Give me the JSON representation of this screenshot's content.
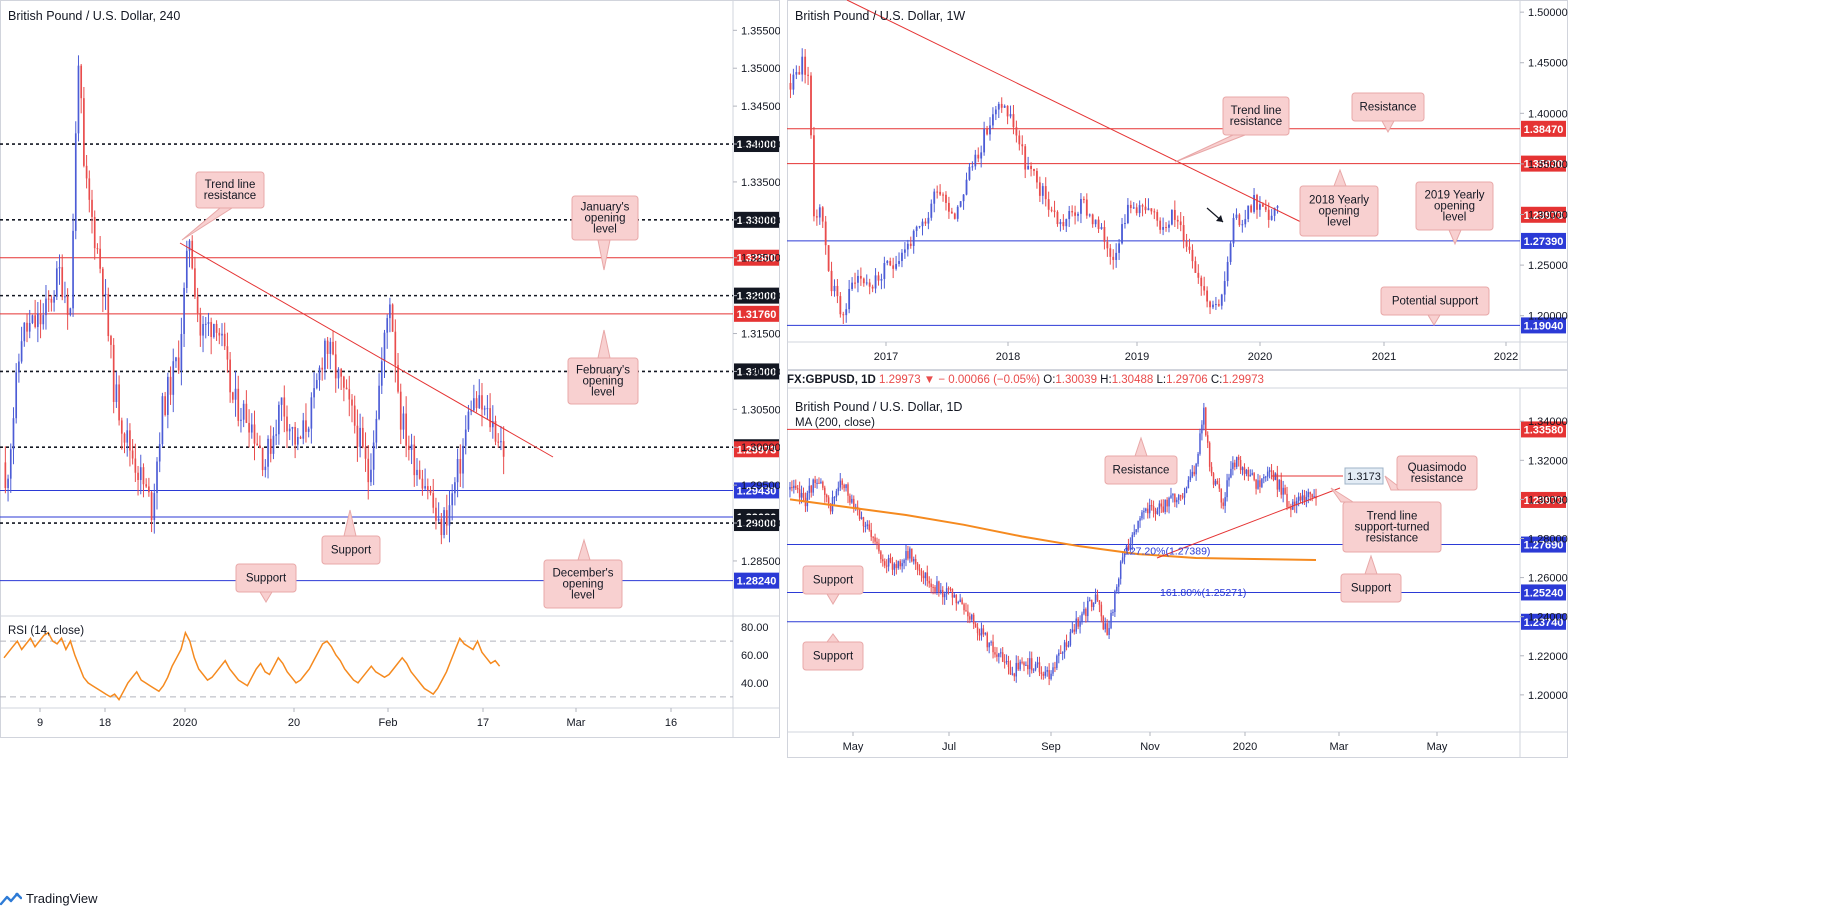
{
  "colors": {
    "up": "#4c5cd6",
    "down": "#e94c4c",
    "support_line": "#2b3ad6",
    "resistance_line": "#e53333",
    "trendline": "#e53333",
    "rsi": "#f58a1f",
    "ma": "#f58a1f",
    "label_bg": "#f8d0d0",
    "price_tag_red": "#e53333",
    "price_tag_blue": "#2b3ad6",
    "price_tag_black": "#131722"
  },
  "footer": {
    "brand": "TradingView",
    "icon": "tradingview-logo-icon"
  },
  "chart_data": [
    {
      "id": "h4",
      "type": "candlestick",
      "title": "British Pound / U.S. Dollar, 240",
      "ylim": [
        1.278,
        1.359
      ],
      "y_ticks": [
        "1.35500",
        "1.35000",
        "1.34500",
        "1.34000",
        "1.33500",
        "1.33000",
        "1.32500",
        "1.32000",
        "1.31500",
        "1.31000",
        "1.30500",
        "1.30000",
        "1.29500",
        "1.29000",
        "1.28500"
      ],
      "x_ticks": [
        "9",
        "18",
        "2020",
        "20",
        "Feb",
        "17",
        "Mar",
        "16"
      ],
      "levels": [
        {
          "tag": "1.34000",
          "value": 1.34,
          "style": "dotted",
          "tag_color": "black"
        },
        {
          "tag": "1.33000",
          "value": 1.33,
          "style": "dotted",
          "tag_color": "black"
        },
        {
          "tag": "1.32500",
          "value": 1.325,
          "style": "red",
          "tag_color": "red"
        },
        {
          "tag": "1.32000",
          "value": 1.32,
          "style": "dotted",
          "tag_color": "black"
        },
        {
          "tag": "1.31760",
          "value": 1.3176,
          "style": "red",
          "tag_color": "red"
        },
        {
          "tag": "1.31000",
          "value": 1.31,
          "style": "dotted",
          "tag_color": "black"
        },
        {
          "tag": "1.30000",
          "value": 1.3,
          "style": "dotted",
          "tag_color": "black"
        },
        {
          "tag": "1.29973",
          "value": 1.29973,
          "style": "none",
          "tag_color": "red"
        },
        {
          "tag": "1.29430",
          "value": 1.2943,
          "style": "blue",
          "tag_color": "blue"
        },
        {
          "tag": "1.29080",
          "value": 1.2908,
          "style": "blue",
          "tag_color": "black"
        },
        {
          "tag": "1.29000",
          "value": 1.29,
          "style": "dotted",
          "tag_color": "black"
        },
        {
          "tag": "1.28240",
          "value": 1.2824,
          "style": "blue",
          "tag_color": "blue"
        }
      ],
      "annotations": [
        "Trend line resistance",
        "January's opening level",
        "February's opening level",
        "Support",
        "December's opening level",
        "Support"
      ],
      "rsi": {
        "label": "RSI (14, close)",
        "ticks": [
          "80.00",
          "60.00",
          "40.00"
        ],
        "ylim": [
          22,
          88
        ],
        "values": [
          58,
          62,
          66,
          70,
          64,
          68,
          72,
          66,
          70,
          74,
          76,
          70,
          68,
          72,
          64,
          70,
          60,
          52,
          44,
          40,
          38,
          36,
          34,
          32,
          30,
          32,
          28,
          34,
          40,
          44,
          48,
          42,
          40,
          38,
          36,
          34,
          38,
          44,
          52,
          58,
          64,
          76,
          70,
          58,
          50,
          46,
          42,
          44,
          48,
          52,
          56,
          50,
          46,
          42,
          40,
          38,
          44,
          50,
          54,
          48,
          46,
          52,
          58,
          54,
          48,
          44,
          40,
          42,
          46,
          50,
          56,
          62,
          68,
          70,
          66,
          60,
          56,
          50,
          46,
          42,
          40,
          44,
          48,
          52,
          48,
          46,
          44,
          46,
          50,
          54,
          58,
          54,
          48,
          44,
          40,
          36,
          34,
          32,
          36,
          42,
          48,
          56,
          64,
          72,
          68,
          66,
          64,
          70,
          62,
          58,
          54,
          56,
          52
        ]
      },
      "candles": {
        "start": 1.298,
        "seed": 11,
        "anchors": [
          [
            0,
            1.294
          ],
          [
            6,
            1.315
          ],
          [
            14,
            1.317
          ],
          [
            20,
            1.323
          ],
          [
            24,
            1.318
          ],
          [
            27,
            1.352
          ],
          [
            29,
            1.336
          ],
          [
            32,
            1.33
          ],
          [
            36,
            1.322
          ],
          [
            40,
            1.308
          ],
          [
            44,
            1.302
          ],
          [
            50,
            1.296
          ],
          [
            54,
            1.292
          ],
          [
            58,
            1.305
          ],
          [
            64,
            1.312
          ],
          [
            68,
            1.328
          ],
          [
            72,
            1.315
          ],
          [
            78,
            1.317
          ],
          [
            84,
            1.306
          ],
          [
            90,
            1.304
          ],
          [
            96,
            1.298
          ],
          [
            102,
            1.306
          ],
          [
            108,
            1.3
          ],
          [
            114,
            1.306
          ],
          [
            118,
            1.314
          ],
          [
            124,
            1.308
          ],
          [
            130,
            1.302
          ],
          [
            134,
            1.296
          ],
          [
            140,
            1.314
          ],
          [
            142,
            1.32
          ],
          [
            146,
            1.304
          ],
          [
            150,
            1.299
          ],
          [
            156,
            1.295
          ],
          [
            160,
            1.289
          ],
          [
            164,
            1.292
          ],
          [
            168,
            1.298
          ],
          [
            172,
            1.306
          ],
          [
            176,
            1.305
          ],
          [
            180,
            1.303
          ],
          [
            184,
            1.2998
          ]
        ]
      }
    },
    {
      "id": "weekly",
      "type": "candlestick",
      "title": "British Pound / U.S. Dollar, 1W",
      "ylim": [
        1.174,
        1.512
      ],
      "y_ticks": [
        "1.50000",
        "1.45000",
        "1.40000",
        "1.35000",
        "1.30000",
        "1.25000",
        "1.20000"
      ],
      "x_ticks": [
        "2017",
        "2018",
        "2019",
        "2020",
        "2021",
        "2022"
      ],
      "levels": [
        {
          "tag": "1.38470",
          "value": 1.3847,
          "style": "red",
          "tag_color": "red"
        },
        {
          "tag": "1.35030",
          "value": 1.3503,
          "style": "red",
          "tag_color": "red"
        },
        {
          "tag": "1.29973",
          "value": 1.29973,
          "style": "none",
          "tag_color": "red"
        },
        {
          "tag": "1.27390",
          "value": 1.2739,
          "style": "blue",
          "tag_color": "blue"
        },
        {
          "tag": "1.19040",
          "value": 1.1904,
          "style": "blue",
          "tag_color": "blue"
        }
      ],
      "annotations": [
        "Trend line resistance",
        "Resistance",
        "2018 Yearly opening level",
        "2019 Yearly opening level",
        "Potential support"
      ],
      "candles": {
        "start": 1.43,
        "seed": 23,
        "anchors": [
          [
            0,
            1.43
          ],
          [
            4,
            1.45
          ],
          [
            6,
            1.44
          ],
          [
            8,
            1.3
          ],
          [
            10,
            1.31
          ],
          [
            14,
            1.23
          ],
          [
            18,
            1.2
          ],
          [
            22,
            1.24
          ],
          [
            28,
            1.23
          ],
          [
            34,
            1.25
          ],
          [
            40,
            1.27
          ],
          [
            46,
            1.29
          ],
          [
            50,
            1.33
          ],
          [
            56,
            1.3
          ],
          [
            62,
            1.35
          ],
          [
            68,
            1.39
          ],
          [
            72,
            1.41
          ],
          [
            76,
            1.39
          ],
          [
            80,
            1.35
          ],
          [
            86,
            1.32
          ],
          [
            92,
            1.29
          ],
          [
            96,
            1.3
          ],
          [
            100,
            1.31
          ],
          [
            106,
            1.28
          ],
          [
            110,
            1.26
          ],
          [
            114,
            1.3
          ],
          [
            118,
            1.31
          ],
          [
            122,
            1.3
          ],
          [
            126,
            1.29
          ],
          [
            130,
            1.3
          ],
          [
            134,
            1.28
          ],
          [
            138,
            1.25
          ],
          [
            142,
            1.22
          ],
          [
            145,
            1.21
          ],
          [
            148,
            1.23
          ],
          [
            151,
            1.29
          ],
          [
            154,
            1.295
          ],
          [
            158,
            1.315
          ],
          [
            162,
            1.3
          ],
          [
            166,
            1.2998
          ]
        ]
      }
    },
    {
      "id": "daily",
      "type": "candlestick",
      "symbol_bar": {
        "symbol": "FX:GBPUSD, 1D",
        "last": "1.29973",
        "change": "− 0.00066 (−0.05%)",
        "ohlc": [
          {
            "key": "O:",
            "value": "1.30039"
          },
          {
            "key": "H:",
            "value": "1.30488"
          },
          {
            "key": "L:",
            "value": "1.29706"
          },
          {
            "key": "C:",
            "value": "1.29973"
          }
        ]
      },
      "title": "British Pound / U.S. Dollar, 1D",
      "ma_label": "MA (200, close)",
      "ylim": [
        1.181,
        1.357
      ],
      "y_ticks": [
        "1.34000",
        "1.32000",
        "1.30000",
        "1.28000",
        "1.26000",
        "1.24000",
        "1.22000",
        "1.20000"
      ],
      "x_ticks": [
        "May",
        "Jul",
        "Sep",
        "Nov",
        "2020",
        "Mar",
        "May"
      ],
      "levels": [
        {
          "tag": "1.33580",
          "value": 1.3358,
          "style": "red",
          "tag_color": "red"
        },
        {
          "tag": "1.29973",
          "value": 1.29973,
          "style": "none",
          "tag_color": "red"
        },
        {
          "tag": "1.27690",
          "value": 1.2769,
          "style": "blue",
          "tag_color": "blue"
        },
        {
          "tag": "1.25240",
          "value": 1.2524,
          "style": "blue",
          "tag_color": "blue"
        },
        {
          "tag": "1.23740",
          "value": 1.2374,
          "style": "blue",
          "tag_color": "blue"
        }
      ],
      "fib_labels": [
        "127.20%(1.27389)",
        "161.80%(1.25271)"
      ],
      "quasimodo_tag": "1.3173",
      "annotations": [
        "Resistance",
        "Quasimodo resistance",
        "Trend line support-turned resistance",
        "Support",
        "Support",
        "Support"
      ],
      "ma": [
        [
          0,
          1.3
        ],
        [
          30,
          1.296
        ],
        [
          60,
          1.292
        ],
        [
          90,
          1.287
        ],
        [
          120,
          1.281
        ],
        [
          150,
          1.276
        ],
        [
          180,
          1.272
        ],
        [
          210,
          1.27
        ],
        [
          240,
          1.2695
        ],
        [
          272,
          1.269
        ]
      ],
      "candles": {
        "start": 1.305,
        "seed": 37,
        "anchors": [
          [
            0,
            1.305
          ],
          [
            8,
            1.3
          ],
          [
            14,
            1.312
          ],
          [
            20,
            1.295
          ],
          [
            26,
            1.308
          ],
          [
            34,
            1.298
          ],
          [
            42,
            1.28
          ],
          [
            52,
            1.265
          ],
          [
            62,
            1.272
          ],
          [
            72,
            1.258
          ],
          [
            84,
            1.25
          ],
          [
            92,
            1.242
          ],
          [
            104,
            1.225
          ],
          [
            114,
            1.212
          ],
          [
            124,
            1.216
          ],
          [
            134,
            1.21
          ],
          [
            142,
            1.225
          ],
          [
            150,
            1.24
          ],
          [
            158,
            1.25
          ],
          [
            164,
            1.23
          ],
          [
            172,
            1.27
          ],
          [
            180,
            1.29
          ],
          [
            188,
            1.295
          ],
          [
            196,
            1.298
          ],
          [
            204,
            1.305
          ],
          [
            210,
            1.318
          ],
          [
            214,
            1.345
          ],
          [
            218,
            1.31
          ],
          [
            224,
            1.3
          ],
          [
            230,
            1.32
          ],
          [
            236,
            1.312
          ],
          [
            242,
            1.308
          ],
          [
            248,
            1.315
          ],
          [
            254,
            1.305
          ],
          [
            258,
            1.295
          ],
          [
            264,
            1.302
          ],
          [
            272,
            1.2998
          ]
        ]
      }
    }
  ]
}
